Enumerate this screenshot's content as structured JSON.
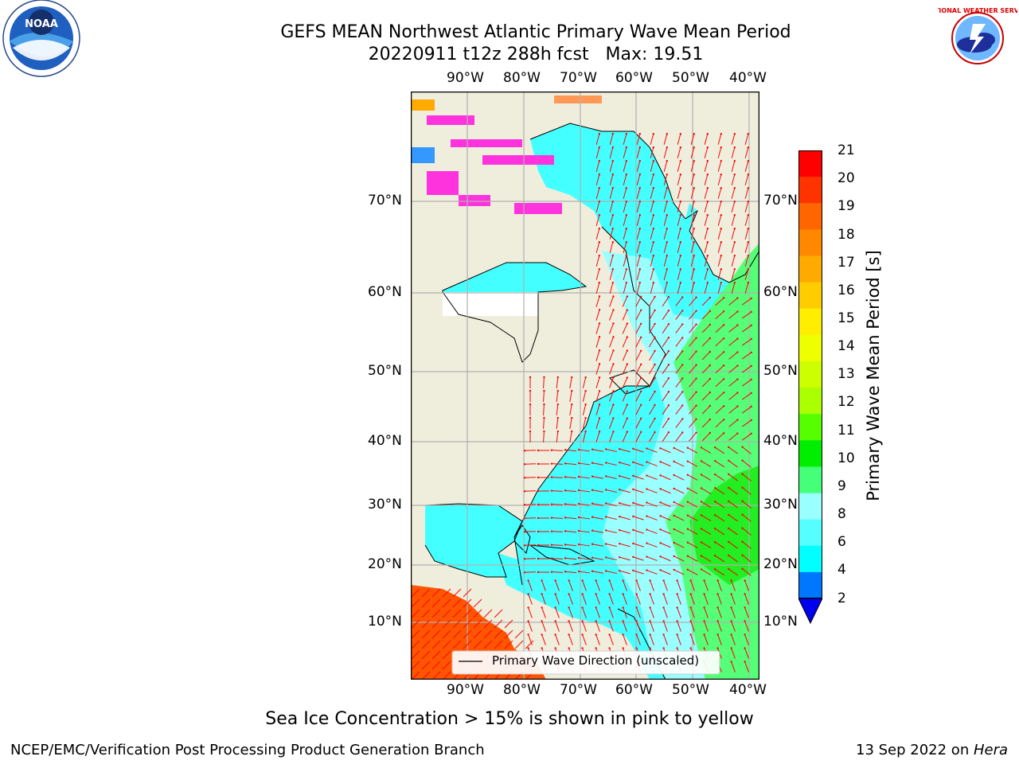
{
  "header": {
    "title_line1": "GEFS MEAN Northwest Atlantic Primary Wave Mean Period",
    "title_line2": "20220911 t12z 288h fcst   Max: 19.51"
  },
  "logos": {
    "noaa_text": "NOAA",
    "nws_text": "NATIONAL WEATHER SERVICE"
  },
  "map": {
    "lon_labels": [
      "90°W",
      "80°W",
      "70°W",
      "60°W",
      "50°W",
      "40°W"
    ],
    "lat_labels": [
      "70°N",
      "60°N",
      "50°N",
      "40°N",
      "30°N",
      "20°N",
      "10°N"
    ],
    "legend_label": "Primary Wave Direction (unscaled)",
    "colors": {
      "land": "#efeedd",
      "ocean_cyan": "#44ffff",
      "ocean_light": "#99ffff",
      "green": "#55ff77",
      "green_dark": "#22ee22",
      "tropic": "#ff5500",
      "arrow": "#ff0000",
      "ice": "#ff33dd"
    }
  },
  "colorbar": {
    "label": "Primary Wave Mean Period [s]",
    "ticks": [
      "21",
      "20",
      "19",
      "18",
      "17",
      "16",
      "15",
      "14",
      "13",
      "12",
      "11",
      "10",
      "9",
      "8",
      "6",
      "4",
      "2"
    ],
    "colors": [
      "#ff0000",
      "#ff3300",
      "#ff6600",
      "#ff8800",
      "#ffaa00",
      "#ffcc00",
      "#ffee00",
      "#eeff00",
      "#ccff00",
      "#aaff00",
      "#55ff00",
      "#00ee00",
      "#44ff77",
      "#99ffff",
      "#55ffff",
      "#00ffff",
      "#0077ff"
    ],
    "extend_color": "#0000ee"
  },
  "notes": {
    "sea_ice": "Sea Ice Concentration > 15% is shown in pink to yellow"
  },
  "footer": {
    "left": "NCEP/EMC/Verification Post Processing Product Generation Branch",
    "date": "13 Sep 2022 on ",
    "machine": "Hera"
  }
}
